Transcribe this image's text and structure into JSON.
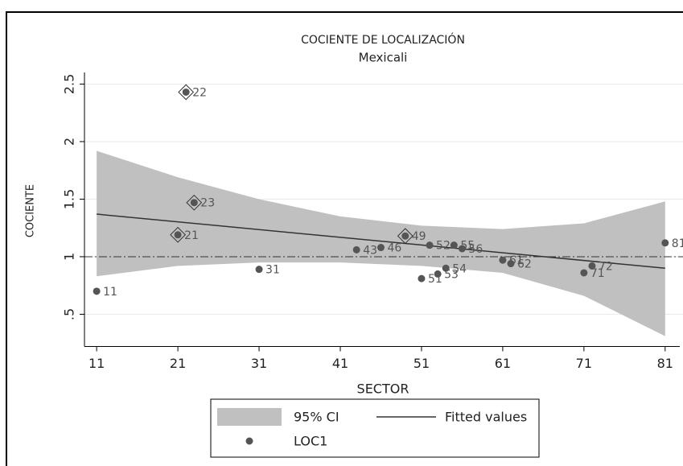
{
  "chart_data": {
    "type": "scatter",
    "title": "COCIENTE DE LOCALIZACIÓN",
    "subtitle": "Mexicali",
    "x_label": "SECTOR",
    "y_label": "COCIENTE",
    "xlim": [
      9.5,
      83
    ],
    "xticks": [
      11,
      21,
      31,
      41,
      51,
      61,
      71,
      81
    ],
    "ylim": [
      0.22,
      2.58
    ],
    "yticks": [
      {
        "value": 0.5,
        "label": ".5"
      },
      1,
      1.5,
      2,
      2.5
    ],
    "grid": true,
    "reference_line": 1,
    "legend": "bottom",
    "series": [
      {
        "name": "95% CI",
        "type": "area",
        "color": "#c0c0c0",
        "x": [
          11,
          21,
          31,
          41,
          51,
          61,
          71,
          81
        ],
        "upper": [
          1.92,
          1.69,
          1.5,
          1.35,
          1.27,
          1.24,
          1.29,
          1.48
        ],
        "lower": [
          0.83,
          0.92,
          0.95,
          0.95,
          0.92,
          0.86,
          0.66,
          0.31
        ]
      },
      {
        "name": "Fitted values",
        "type": "line",
        "color": "#333333",
        "x": [
          11,
          81
        ],
        "values": [
          1.37,
          0.9
        ]
      },
      {
        "name": "LOC1",
        "type": "scatter",
        "color": "#555555",
        "x": [
          11,
          21,
          22,
          23,
          31,
          43,
          46,
          49,
          51,
          52,
          53,
          54,
          55,
          56,
          61,
          62,
          71,
          72,
          81
        ],
        "values": [
          0.7,
          1.19,
          2.43,
          1.47,
          0.89,
          1.06,
          1.08,
          1.18,
          0.81,
          1.1,
          0.85,
          0.9,
          1.1,
          1.07,
          0.97,
          0.94,
          0.86,
          0.92,
          1.12
        ],
        "highlight": [
          1,
          2,
          3,
          7
        ]
      }
    ]
  }
}
